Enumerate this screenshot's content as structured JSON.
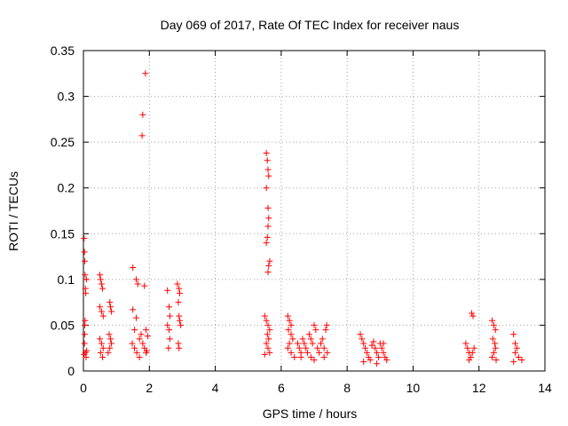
{
  "chart_data": {
    "type": "scatter",
    "title": "Day 069 of 2017, Rate Of TEC Index for receiver naus",
    "xlabel": "GPS time / hours",
    "ylabel": "ROTI / TECUs",
    "xlim": [
      0,
      14
    ],
    "ylim": [
      0,
      0.35
    ],
    "xticks": [
      0,
      2,
      4,
      6,
      8,
      10,
      12,
      14
    ],
    "yticks": [
      0,
      0.05,
      0.1,
      0.15,
      0.2,
      0.25,
      0.3,
      0.35
    ],
    "xtick_labels": [
      "0",
      "2",
      "4",
      "6",
      "8",
      "10",
      "12",
      "14"
    ],
    "ytick_labels": [
      "0",
      "0.05",
      "0.1",
      "0.15",
      "0.2",
      "0.25",
      "0.3",
      "0.35"
    ],
    "grid": true,
    "marker": "+",
    "color": "#ff0000",
    "series": [
      {
        "points": [
          [
            0.02,
            0.145
          ],
          [
            0.03,
            0.13
          ],
          [
            0.04,
            0.12
          ],
          [
            0.05,
            0.105
          ],
          [
            0.06,
            0.09
          ],
          [
            0.07,
            0.085
          ],
          [
            0.05,
            0.055
          ],
          [
            0.04,
            0.04
          ],
          [
            0.03,
            0.03
          ],
          [
            0.06,
            0.02
          ],
          [
            0.02,
            0.018
          ],
          [
            0.08,
            0.015
          ],
          [
            0.1,
            0.022
          ],
          [
            0.04,
            0.05
          ],
          [
            0.09,
            0.1
          ],
          [
            0.5,
            0.105
          ],
          [
            0.52,
            0.1
          ],
          [
            0.55,
            0.095
          ],
          [
            0.58,
            0.09
          ],
          [
            0.5,
            0.07
          ],
          [
            0.55,
            0.065
          ],
          [
            0.6,
            0.06
          ],
          [
            0.5,
            0.035
          ],
          [
            0.55,
            0.03
          ],
          [
            0.6,
            0.025
          ],
          [
            0.52,
            0.02
          ],
          [
            0.58,
            0.015
          ],
          [
            0.8,
            0.075
          ],
          [
            0.82,
            0.07
          ],
          [
            0.85,
            0.065
          ],
          [
            0.78,
            0.04
          ],
          [
            0.82,
            0.035
          ],
          [
            0.85,
            0.03
          ],
          [
            0.8,
            0.025
          ],
          [
            0.75,
            0.02
          ],
          [
            1.5,
            0.113
          ],
          [
            1.6,
            0.1
          ],
          [
            1.65,
            0.095
          ],
          [
            1.5,
            0.067
          ],
          [
            1.6,
            0.058
          ],
          [
            1.55,
            0.045
          ],
          [
            1.48,
            0.03
          ],
          [
            1.55,
            0.025
          ],
          [
            1.62,
            0.02
          ],
          [
            1.7,
            0.035
          ],
          [
            1.75,
            0.04
          ],
          [
            1.8,
            0.03
          ],
          [
            1.85,
            0.025
          ],
          [
            1.9,
            0.02
          ],
          [
            1.7,
            0.015
          ],
          [
            1.8,
            0.28
          ],
          [
            1.78,
            0.257
          ],
          [
            1.88,
            0.325
          ],
          [
            1.85,
            0.093
          ],
          [
            1.9,
            0.045
          ],
          [
            1.95,
            0.038
          ],
          [
            1.92,
            0.022
          ],
          [
            2.55,
            0.088
          ],
          [
            2.6,
            0.07
          ],
          [
            2.62,
            0.06
          ],
          [
            2.55,
            0.05
          ],
          [
            2.6,
            0.045
          ],
          [
            2.62,
            0.035
          ],
          [
            2.58,
            0.025
          ],
          [
            2.85,
            0.095
          ],
          [
            2.9,
            0.09
          ],
          [
            2.92,
            0.085
          ],
          [
            2.88,
            0.075
          ],
          [
            2.9,
            0.06
          ],
          [
            2.92,
            0.055
          ],
          [
            2.88,
            0.03
          ],
          [
            2.9,
            0.025
          ],
          [
            2.95,
            0.05
          ],
          [
            5.55,
            0.238
          ],
          [
            5.58,
            0.23
          ],
          [
            5.6,
            0.22
          ],
          [
            5.62,
            0.213
          ],
          [
            5.55,
            0.2
          ],
          [
            5.6,
            0.178
          ],
          [
            5.62,
            0.167
          ],
          [
            5.6,
            0.158
          ],
          [
            5.58,
            0.146
          ],
          [
            5.55,
            0.14
          ],
          [
            5.65,
            0.12
          ],
          [
            5.62,
            0.115
          ],
          [
            5.6,
            0.108
          ],
          [
            5.5,
            0.06
          ],
          [
            5.55,
            0.055
          ],
          [
            5.6,
            0.05
          ],
          [
            5.65,
            0.045
          ],
          [
            5.58,
            0.04
          ],
          [
            5.62,
            0.035
          ],
          [
            5.55,
            0.03
          ],
          [
            5.6,
            0.025
          ],
          [
            5.65,
            0.02
          ],
          [
            5.5,
            0.018
          ],
          [
            6.2,
            0.06
          ],
          [
            6.25,
            0.055
          ],
          [
            6.3,
            0.05
          ],
          [
            6.22,
            0.045
          ],
          [
            6.3,
            0.04
          ],
          [
            6.35,
            0.035
          ],
          [
            6.25,
            0.03
          ],
          [
            6.2,
            0.025
          ],
          [
            6.3,
            0.02
          ],
          [
            6.4,
            0.015
          ],
          [
            6.5,
            0.03
          ],
          [
            6.55,
            0.025
          ],
          [
            6.6,
            0.02
          ],
          [
            6.65,
            0.035
          ],
          [
            6.7,
            0.03
          ],
          [
            6.75,
            0.025
          ],
          [
            6.8,
            0.02
          ],
          [
            6.85,
            0.04
          ],
          [
            6.9,
            0.035
          ],
          [
            6.95,
            0.03
          ],
          [
            7.0,
            0.05
          ],
          [
            7.05,
            0.045
          ],
          [
            7.1,
            0.025
          ],
          [
            7.15,
            0.02
          ],
          [
            7.2,
            0.03
          ],
          [
            7.25,
            0.035
          ],
          [
            7.3,
            0.025
          ],
          [
            7.35,
            0.045
          ],
          [
            7.38,
            0.05
          ],
          [
            7.3,
            0.015
          ],
          [
            7.4,
            0.02
          ],
          [
            6.6,
            0.015
          ],
          [
            6.9,
            0.015
          ],
          [
            7.0,
            0.012
          ],
          [
            8.4,
            0.04
          ],
          [
            8.45,
            0.035
          ],
          [
            8.5,
            0.03
          ],
          [
            8.55,
            0.025
          ],
          [
            8.6,
            0.02
          ],
          [
            8.65,
            0.015
          ],
          [
            8.7,
            0.012
          ],
          [
            8.75,
            0.028
          ],
          [
            8.8,
            0.032
          ],
          [
            8.85,
            0.025
          ],
          [
            8.9,
            0.02
          ],
          [
            8.95,
            0.015
          ],
          [
            9.0,
            0.03
          ],
          [
            9.05,
            0.025
          ],
          [
            9.1,
            0.02
          ],
          [
            9.15,
            0.015
          ],
          [
            9.2,
            0.012
          ],
          [
            8.5,
            0.01
          ],
          [
            8.9,
            0.008
          ],
          [
            9.1,
            0.03
          ],
          [
            11.6,
            0.03
          ],
          [
            11.65,
            0.025
          ],
          [
            11.7,
            0.02
          ],
          [
            11.75,
            0.015
          ],
          [
            11.8,
            0.02
          ],
          [
            11.85,
            0.025
          ],
          [
            11.78,
            0.063
          ],
          [
            11.82,
            0.06
          ],
          [
            11.7,
            0.012
          ],
          [
            12.4,
            0.055
          ],
          [
            12.45,
            0.05
          ],
          [
            12.5,
            0.045
          ],
          [
            12.42,
            0.035
          ],
          [
            12.48,
            0.03
          ],
          [
            12.5,
            0.025
          ],
          [
            12.45,
            0.02
          ],
          [
            12.4,
            0.015
          ],
          [
            12.52,
            0.012
          ],
          [
            13.05,
            0.04
          ],
          [
            13.1,
            0.03
          ],
          [
            13.15,
            0.025
          ],
          [
            13.1,
            0.02
          ],
          [
            13.2,
            0.015
          ],
          [
            13.3,
            0.012
          ],
          [
            13.05,
            0.01
          ]
        ]
      }
    ]
  }
}
